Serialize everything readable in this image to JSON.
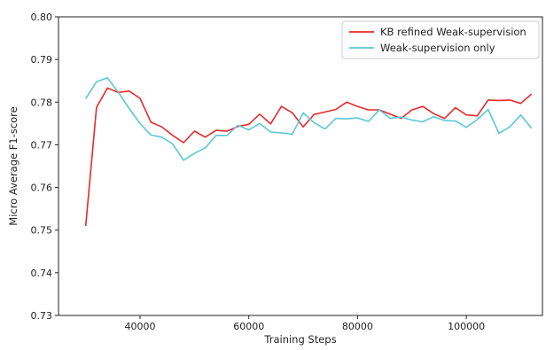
{
  "chart_data": {
    "type": "line",
    "title": "",
    "xlabel": "Training Steps",
    "ylabel": "Micro Average F1-score",
    "xlim": [
      25000,
      114000
    ],
    "ylim": [
      0.73,
      0.8
    ],
    "xticks": [
      40000,
      60000,
      80000,
      100000
    ],
    "xtick_labels": [
      "40000",
      "60000",
      "80000",
      "100000"
    ],
    "yticks": [
      0.73,
      0.74,
      0.75,
      0.76,
      0.77,
      0.78,
      0.79,
      0.8
    ],
    "ytick_labels": [
      "0.73",
      "0.74",
      "0.75",
      "0.76",
      "0.77",
      "0.78",
      "0.79",
      "0.80"
    ],
    "grid": false,
    "legend_position": "top-right",
    "x": [
      30000,
      32000,
      34000,
      36000,
      38000,
      40000,
      42000,
      44000,
      46000,
      48000,
      50000,
      52000,
      54000,
      56000,
      58000,
      60000,
      62000,
      64000,
      66000,
      68000,
      70000,
      72000,
      74000,
      76000,
      78000,
      80000,
      82000,
      84000,
      86000,
      88000,
      90000,
      92000,
      94000,
      96000,
      98000,
      100000,
      102000,
      104000,
      106000,
      108000,
      110000,
      112000
    ],
    "series": [
      {
        "name": "KB refined Weak-supervision",
        "color": "#e8292b",
        "values": [
          0.751,
          0.7788,
          0.7833,
          0.7823,
          0.7826,
          0.7809,
          0.7753,
          0.7742,
          0.7722,
          0.7705,
          0.7732,
          0.7718,
          0.7734,
          0.7732,
          0.7743,
          0.7748,
          0.7772,
          0.7749,
          0.779,
          0.7775,
          0.7742,
          0.7771,
          0.7777,
          0.7783,
          0.78,
          0.779,
          0.7782,
          0.7782,
          0.7772,
          0.7762,
          0.7782,
          0.779,
          0.7773,
          0.7762,
          0.7787,
          0.777,
          0.7768,
          0.7805,
          0.7804,
          0.7805,
          0.7797,
          0.7819
        ]
      },
      {
        "name": "Weak-supervision only",
        "color": "#5bc8d3",
        "values": [
          0.7808,
          0.7848,
          0.7857,
          0.7823,
          0.7785,
          0.775,
          0.7723,
          0.7718,
          0.7702,
          0.7664,
          0.768,
          0.7693,
          0.7722,
          0.7722,
          0.7746,
          0.7735,
          0.775,
          0.773,
          0.7728,
          0.7725,
          0.7775,
          0.7752,
          0.7737,
          0.7762,
          0.7761,
          0.7763,
          0.7755,
          0.7782,
          0.7762,
          0.7765,
          0.7758,
          0.7754,
          0.7766,
          0.7757,
          0.7756,
          0.7741,
          0.7759,
          0.7783,
          0.7727,
          0.7742,
          0.777,
          0.7739
        ]
      }
    ]
  }
}
